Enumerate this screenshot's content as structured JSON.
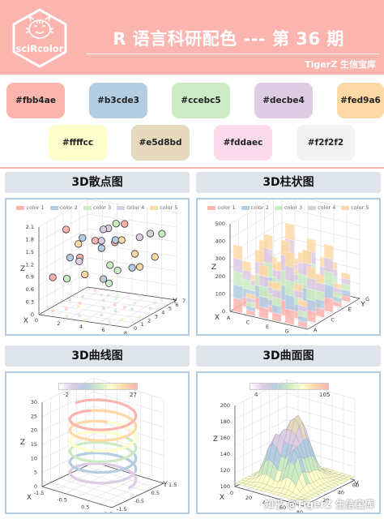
{
  "header": {
    "logo_text": "sciRcolor",
    "title": "R 语言科研配色 --- 第 36 期",
    "author": "TigerZ 生信宝库"
  },
  "swatches": [
    {
      "label": "#fbb4ae",
      "color": "#fbb4ae"
    },
    {
      "label": "#b3cde3",
      "color": "#b3cde3"
    },
    {
      "label": "#ccebc5",
      "color": "#ccebc5"
    },
    {
      "label": "#decbe4",
      "color": "#decbe4"
    },
    {
      "label": "#fed9a6",
      "color": "#fed9a6"
    },
    {
      "label": "#ffffcc",
      "color": "#ffffcc"
    },
    {
      "label": "#e5d8bd",
      "color": "#e5d8bd"
    },
    {
      "label": "#fddaec",
      "color": "#fddaec"
    },
    {
      "label": "#f2f2f2",
      "color": "#f2f2f2"
    }
  ],
  "accent": "#fbb4ae",
  "panel_border": "#b3cde3",
  "panels": {
    "scatter": {
      "title": "3D散点图"
    },
    "bar": {
      "title": "3D柱状图"
    },
    "line": {
      "title": "3D曲线图"
    },
    "surface": {
      "title": "3D曲面图"
    }
  },
  "legend": [
    "color 1",
    "color 2",
    "color 3",
    "color 4",
    "color 5"
  ],
  "legend_colors": [
    "#fbb4ae",
    "#b3cde3",
    "#ccebc5",
    "#decbe4",
    "#fed9a6"
  ],
  "watermark": "知乎 @TigerZ 生信宝库",
  "chart_data": [
    {
      "type": "scatter",
      "title": "3D散点图",
      "axis_labels": {
        "x": "X",
        "y": "Y",
        "z": "Z"
      },
      "z_ticks": [
        "2.1",
        "1.8",
        "1.5",
        "1.2",
        "0.9",
        "0.6",
        "0.3",
        "0"
      ],
      "x_ticks": [
        "0",
        "2",
        "4",
        "6",
        "8"
      ],
      "y_ticks": [
        "0",
        "1",
        "2",
        "3",
        "4",
        "5",
        "6",
        "7"
      ],
      "legend": [
        "color 1",
        "color 2",
        "color 3",
        "color 4",
        "color 5"
      ],
      "points": [
        {
          "x": 1.2,
          "y": 2.0,
          "z": 1.9,
          "c": 0
        },
        {
          "x": 3.5,
          "y": 5.5,
          "z": 1.8,
          "c": 2
        },
        {
          "x": 5.0,
          "y": 3.0,
          "z": 1.7,
          "c": 1
        },
        {
          "x": 2.5,
          "y": 6.0,
          "z": 1.6,
          "c": 3
        },
        {
          "x": 6.5,
          "y": 1.5,
          "z": 1.9,
          "c": 4
        },
        {
          "x": 4.2,
          "y": 4.2,
          "z": 1.5,
          "c": 0
        },
        {
          "x": 0.8,
          "y": 5.0,
          "z": 1.4,
          "c": 1
        },
        {
          "x": 7.0,
          "y": 6.5,
          "z": 1.6,
          "c": 2
        },
        {
          "x": 3.0,
          "y": 1.0,
          "z": 1.3,
          "c": 3
        },
        {
          "x": 5.5,
          "y": 5.0,
          "z": 1.2,
          "c": 4
        },
        {
          "x": 1.5,
          "y": 3.5,
          "z": 1.1,
          "c": 0
        },
        {
          "x": 6.0,
          "y": 3.8,
          "z": 1.0,
          "c": 1
        },
        {
          "x": 2.2,
          "y": 0.5,
          "z": 0.9,
          "c": 2
        },
        {
          "x": 4.8,
          "y": 6.8,
          "z": 1.4,
          "c": 3
        },
        {
          "x": 7.5,
          "y": 2.5,
          "z": 1.2,
          "c": 4
        },
        {
          "x": 0.5,
          "y": 1.2,
          "z": 0.8,
          "c": 0
        },
        {
          "x": 3.8,
          "y": 3.2,
          "z": 0.7,
          "c": 1
        },
        {
          "x": 5.8,
          "y": 0.8,
          "z": 0.9,
          "c": 2
        },
        {
          "x": 2.8,
          "y": 4.8,
          "z": 1.7,
          "c": 3
        },
        {
          "x": 6.8,
          "y": 5.8,
          "z": 1.1,
          "c": 4
        },
        {
          "x": 1.0,
          "y": 6.5,
          "z": 1.2,
          "c": 0
        },
        {
          "x": 4.5,
          "y": 1.8,
          "z": 1.6,
          "c": 1
        },
        {
          "x": 3.2,
          "y": 6.2,
          "z": 0.6,
          "c": 2
        },
        {
          "x": 7.2,
          "y": 4.5,
          "z": 1.8,
          "c": 3
        },
        {
          "x": 1.8,
          "y": 2.8,
          "z": 1.5,
          "c": 4
        },
        {
          "x": 5.2,
          "y": 4.0,
          "z": 2.0,
          "c": 0
        },
        {
          "x": 0.3,
          "y": 4.0,
          "z": 1.0,
          "c": 1
        },
        {
          "x": 6.2,
          "y": 0.3,
          "z": 1.4,
          "c": 2
        },
        {
          "x": 2.0,
          "y": 5.8,
          "z": 1.3,
          "c": 3
        },
        {
          "x": 4.0,
          "y": 0.2,
          "z": 1.1,
          "c": 4
        }
      ]
    },
    {
      "type": "bar",
      "title": "3D柱状图",
      "axis_labels": {
        "x": "X",
        "y": "Y",
        "z": "Z"
      },
      "z_ticks": [
        "0",
        "100",
        "200",
        "300",
        "400",
        "500"
      ],
      "x_ticks": [
        "A",
        "B",
        "C",
        "D",
        "E",
        "F",
        "G",
        "H",
        "I",
        "J"
      ],
      "y_ticks": [
        "A",
        "B",
        "C",
        "D",
        "E",
        "F",
        "G"
      ],
      "legend": [
        "color 1",
        "color 2",
        "color 3",
        "color 4",
        "color 5"
      ],
      "heights": [
        [
          380,
          120,
          300,
          220,
          410,
          150
        ],
        [
          260,
          340,
          180,
          430,
          200,
          310
        ],
        [
          150,
          400,
          260,
          140,
          360,
          240
        ],
        [
          320,
          210,
          450,
          300,
          170,
          380
        ],
        [
          200,
          280,
          160,
          350,
          260,
          130
        ],
        [
          100,
          180,
          240,
          120,
          210,
          160
        ]
      ]
    },
    {
      "type": "line",
      "title": "3D曲线图",
      "axis_labels": {
        "x": "X",
        "y": "Y",
        "z": "Z"
      },
      "z_ticks": [
        "0",
        "5",
        "10",
        "15",
        "20",
        "25",
        "30"
      ],
      "x_ticks": [
        "-1.5",
        "-1",
        "-0.5",
        "0",
        "0.5",
        "1",
        "1.5"
      ],
      "y_ticks": [
        "-1.5",
        "-1",
        "-0.5",
        "0",
        "0.5",
        "1",
        "1.5"
      ],
      "colorbar": {
        "min": "-2",
        "max": "27"
      },
      "helix": {
        "turns": 6.5,
        "z_range": [
          0,
          27
        ]
      }
    },
    {
      "type": "surface",
      "title": "3D曲面图",
      "axis_labels": {
        "x": "X",
        "y": "Y",
        "z": "Z"
      },
      "z_ticks": [
        "100",
        "120",
        "140",
        "160",
        "180",
        "200"
      ],
      "x_ticks": [
        "0",
        "20",
        "40",
        "60",
        "80"
      ],
      "y_ticks": [
        "0",
        "10",
        "20",
        "30",
        "40",
        "50",
        "60",
        "70"
      ],
      "colorbar": {
        "min": "4",
        "max": "105"
      }
    }
  ]
}
